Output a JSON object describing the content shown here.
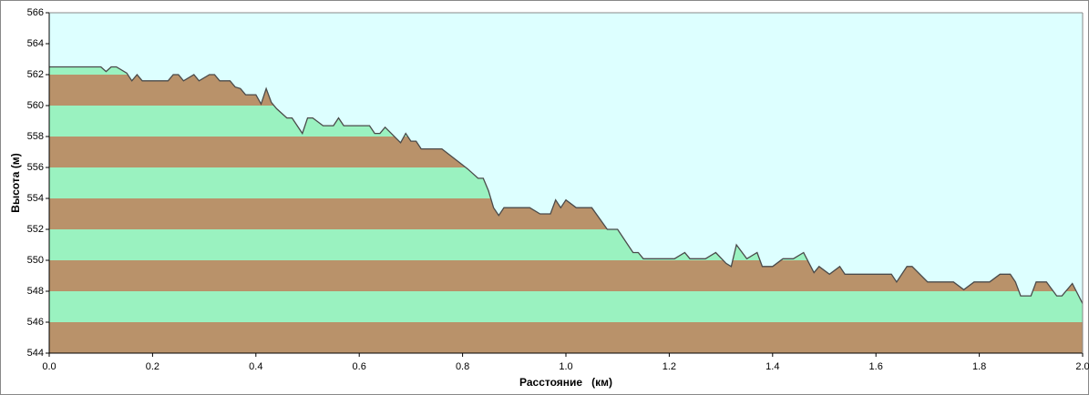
{
  "chart_data": {
    "type": "area",
    "xlabel": "Расстояние   (км)",
    "ylabel": "Высота (м)",
    "background": "#ddffff",
    "line_color": "#4a4a4a",
    "band_colors": [
      "#b9926a",
      "#9af2c0"
    ],
    "x": [
      0,
      0.1,
      0.11,
      0.12,
      0.13,
      0.15,
      0.16,
      0.17,
      0.18,
      0.23,
      0.24,
      0.25,
      0.26,
      0.28,
      0.29,
      0.31,
      0.32,
      0.33,
      0.35,
      0.36,
      0.37,
      0.38,
      0.4,
      0.41,
      0.42,
      0.43,
      0.44,
      0.46,
      0.47,
      0.49,
      0.5,
      0.51,
      0.53,
      0.55,
      0.56,
      0.57,
      0.62,
      0.63,
      0.64,
      0.65,
      0.68,
      0.69,
      0.7,
      0.71,
      0.72,
      0.76,
      0.81,
      0.83,
      0.84,
      0.85,
      0.86,
      0.87,
      0.88,
      0.93,
      0.95,
      0.97,
      0.98,
      0.99,
      1.0,
      1.02,
      1.05,
      1.08,
      1.1,
      1.12,
      1.13,
      1.14,
      1.15,
      1.21,
      1.23,
      1.24,
      1.27,
      1.29,
      1.31,
      1.32,
      1.33,
      1.35,
      1.37,
      1.38,
      1.4,
      1.42,
      1.44,
      1.46,
      1.48,
      1.49,
      1.51,
      1.53,
      1.54,
      1.63,
      1.64,
      1.66,
      1.67,
      1.7,
      1.75,
      1.77,
      1.79,
      1.82,
      1.84,
      1.86,
      1.87,
      1.88,
      1.9,
      1.91,
      1.93,
      1.95,
      1.96,
      1.98,
      2.0
    ],
    "values": [
      562.5,
      562.5,
      562.2,
      562.5,
      562.5,
      562.1,
      561.6,
      562,
      561.6,
      561.6,
      562,
      562,
      561.6,
      562,
      561.6,
      562,
      562,
      561.6,
      561.6,
      561.2,
      561.1,
      560.7,
      560.7,
      560.1,
      561.1,
      560.2,
      559.8,
      559.2,
      559.2,
      558.2,
      559.2,
      559.2,
      558.7,
      558.7,
      559.2,
      558.7,
      558.7,
      558.2,
      558.2,
      558.6,
      557.6,
      558.2,
      557.7,
      557.7,
      557.2,
      557.2,
      555.9,
      555.3,
      555.3,
      554.5,
      553.4,
      552.9,
      553.4,
      553.4,
      553,
      553,
      553.9,
      553.4,
      553.9,
      553.4,
      553.4,
      552,
      552,
      551,
      550.5,
      550.5,
      550.1,
      550.1,
      550.5,
      550.1,
      550.1,
      550.5,
      549.8,
      549.6,
      551,
      550.1,
      550.5,
      549.6,
      549.6,
      550.1,
      550.1,
      550.5,
      549.2,
      549.6,
      549.1,
      549.6,
      549.1,
      549.1,
      548.6,
      549.6,
      549.6,
      548.6,
      548.6,
      548.1,
      548.6,
      548.6,
      549.1,
      549.1,
      548.6,
      547.7,
      547.7,
      548.6,
      548.6,
      547.7,
      547.7,
      548.5,
      547.2
    ],
    "xlim": [
      0,
      2
    ],
    "ylim": [
      544,
      566
    ],
    "xticks": [
      {
        "value": 0,
        "label": "0.0"
      },
      0.2,
      0.4,
      0.6,
      0.8,
      {
        "value": 1,
        "label": "1.0"
      },
      1.2,
      1.4,
      1.6,
      1.8,
      {
        "value": 2,
        "label": "2.0"
      }
    ],
    "yticks": [
      544,
      546,
      548,
      550,
      552,
      554,
      556,
      558,
      560,
      562,
      564,
      566
    ]
  }
}
